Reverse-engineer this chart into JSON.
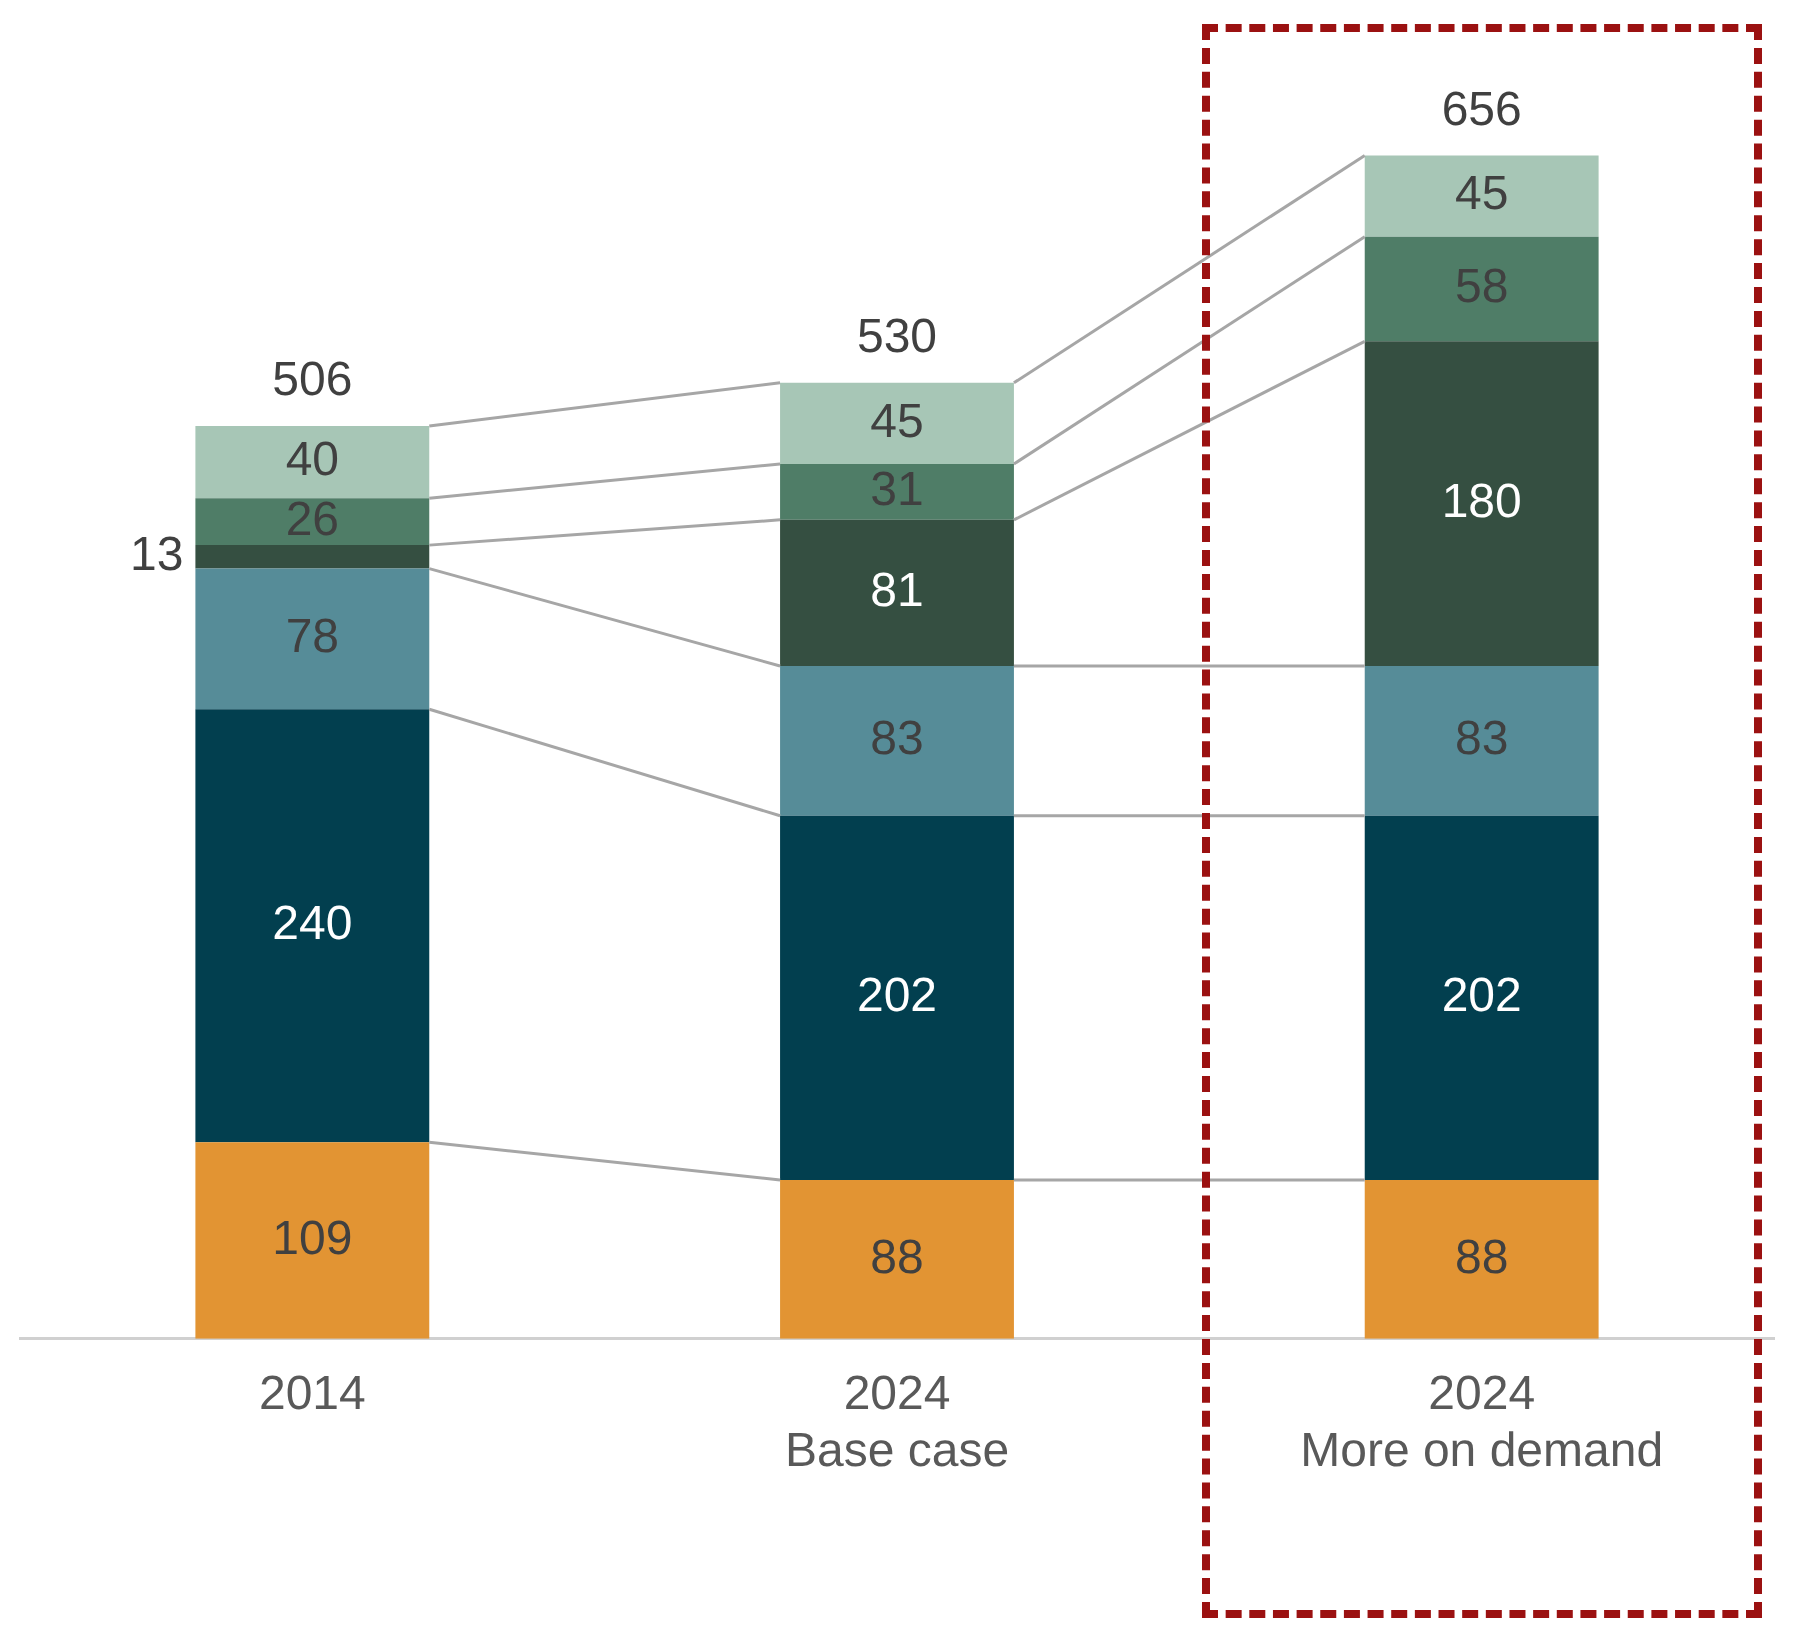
{
  "chart_data": {
    "type": "bar",
    "stacked": true,
    "data_labels": true,
    "legend": false,
    "grid": false,
    "categories": [
      "2014",
      "2024\nBase case",
      "2024\nMore on demand"
    ],
    "series": [
      {
        "color": "#e29433",
        "values": [
          109,
          88,
          88
        ]
      },
      {
        "color": "#023f4f",
        "values": [
          240,
          202,
          202
        ]
      },
      {
        "color": "#568c98",
        "values": [
          78,
          83,
          83
        ]
      },
      {
        "color": "#354f41",
        "values": [
          13,
          81,
          180
        ]
      },
      {
        "color": "#4f7d67",
        "values": [
          26,
          31,
          58
        ]
      },
      {
        "color": "#a7c6b6",
        "values": [
          40,
          45,
          45
        ]
      }
    ],
    "totals": [
      "506",
      "530",
      "656"
    ]
  }
}
